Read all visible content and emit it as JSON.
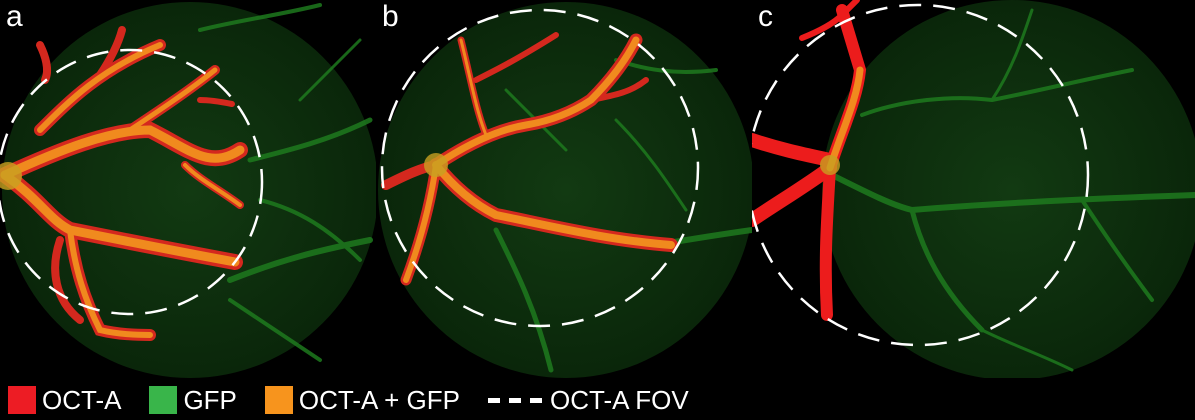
{
  "panels": [
    {
      "label": "a"
    },
    {
      "label": "b"
    },
    {
      "label": "c"
    }
  ],
  "legend": [
    {
      "text": "OCT-A",
      "color": "#ed1c24"
    },
    {
      "text": "GFP",
      "color": "#39b54a"
    },
    {
      "text": "OCT-A + GFP",
      "color": "#f7941d"
    },
    {
      "text": "OCT-A FOV",
      "style": "dashed-white"
    }
  ],
  "colors": {
    "oct_a": "#ed1c24",
    "gfp": "#39b54a",
    "overlap": "#f7941d",
    "background_disc": "#0b2b0b"
  }
}
